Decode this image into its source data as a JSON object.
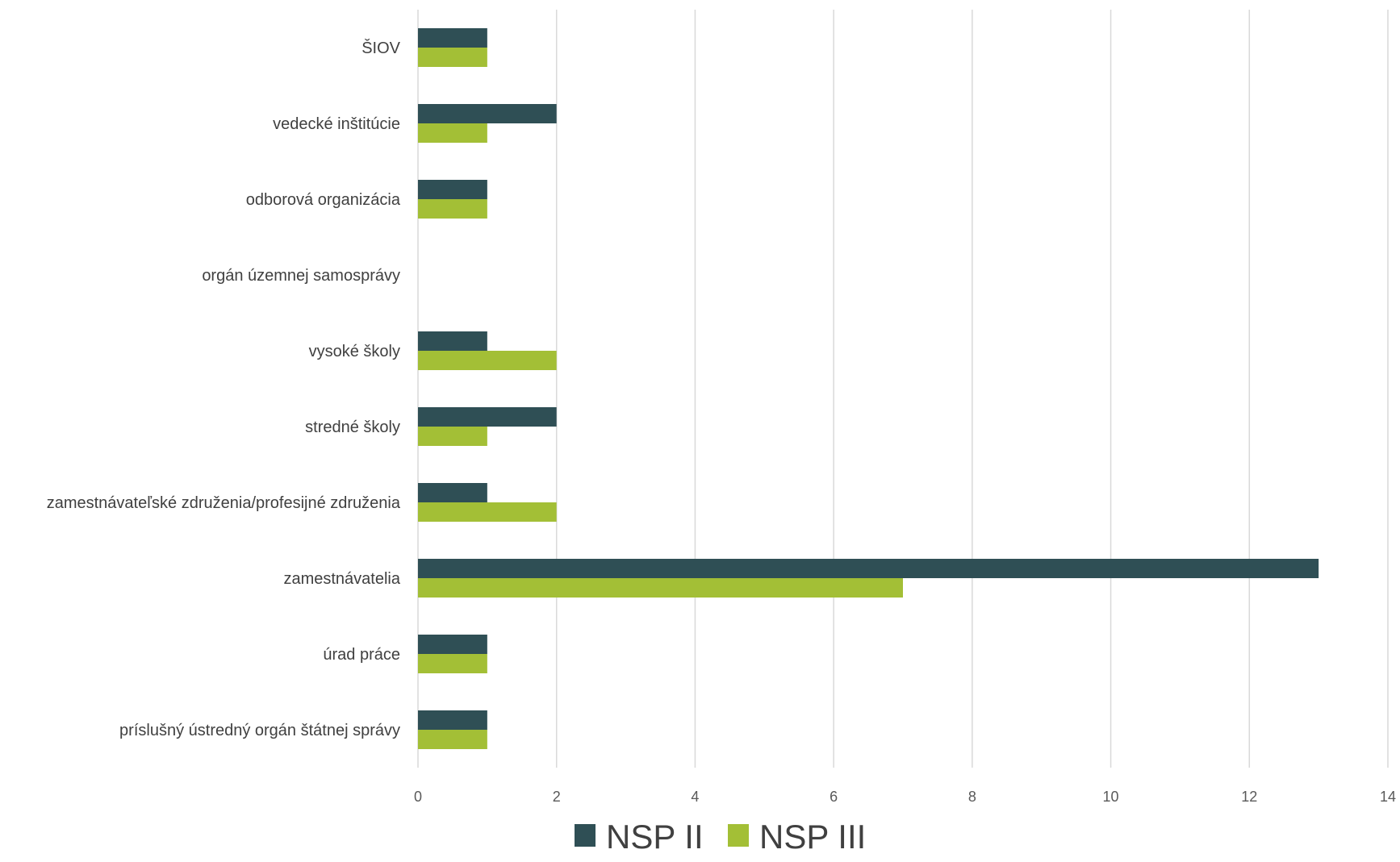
{
  "chart_data": {
    "type": "bar",
    "orientation": "horizontal",
    "title": "",
    "xlabel": "",
    "ylabel": "",
    "categories": [
      "ŠIOV",
      "vedecké inštitúcie",
      "odborová organizácia",
      "orgán územnej samosprávy",
      "vysoké školy",
      "stredné školy",
      "zamestnávateľské združenia/profesijné združenia",
      "zamestnávatelia",
      "úrad práce",
      "príslušný ústredný orgán štátnej správy"
    ],
    "series": [
      {
        "name": "NSP II",
        "color": "#2f4f55",
        "values": [
          1,
          2,
          1,
          0,
          1,
          2,
          1,
          13,
          1,
          1
        ]
      },
      {
        "name": "NSP III",
        "color": "#a3bf36",
        "values": [
          1,
          1,
          1,
          0,
          2,
          1,
          2,
          7,
          1,
          1
        ]
      }
    ],
    "xlim": [
      0,
      14
    ],
    "xticks": [
      "0",
      "2",
      "4",
      "6",
      "8",
      "10",
      "12",
      "14"
    ],
    "grid": true,
    "legend": "bottom"
  }
}
